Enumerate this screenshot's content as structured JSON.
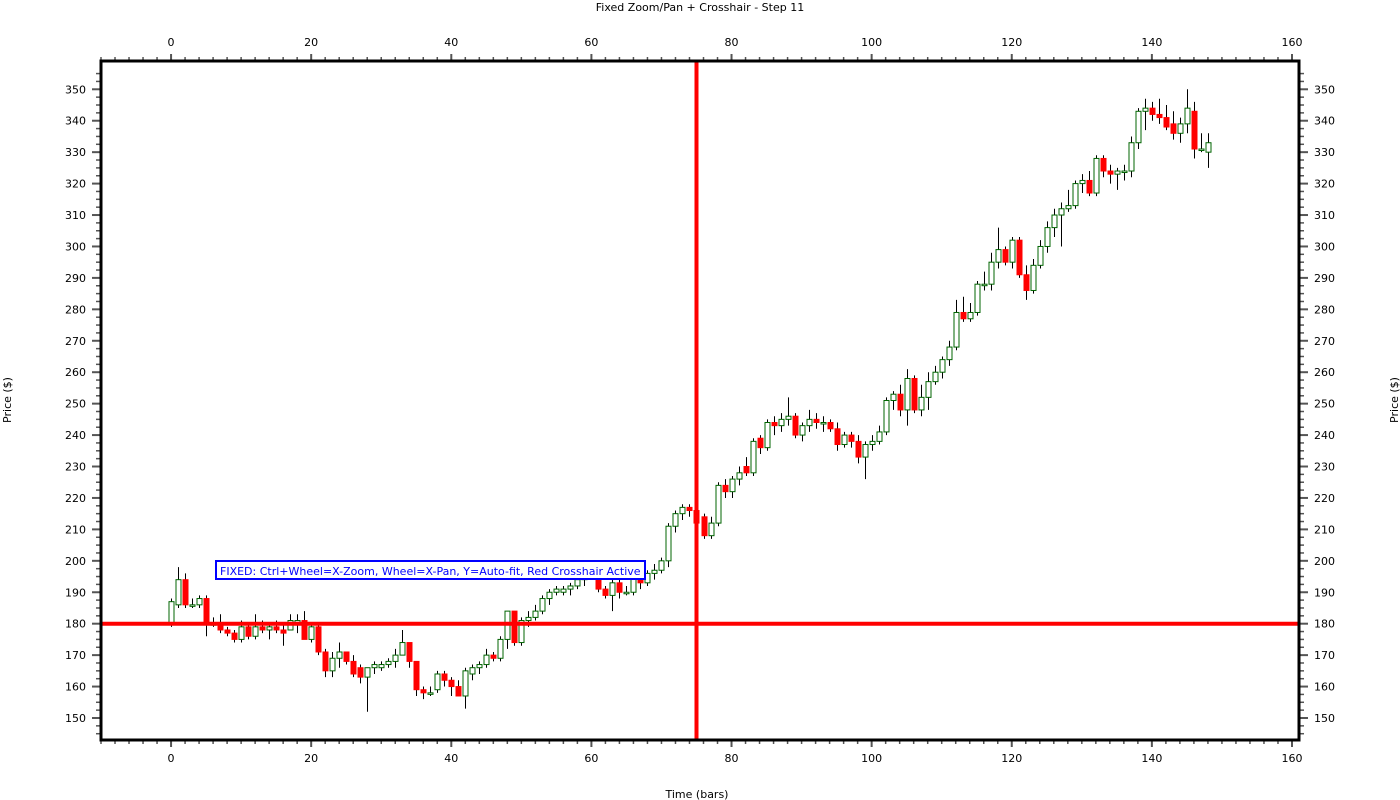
{
  "chart_data": {
    "type": "candlestick",
    "title": "Fixed Zoom/Pan + Crosshair - Step 11",
    "xlabel": "Time (bars)",
    "ylabel": "Price ($)",
    "xlim": [
      -10,
      161
    ],
    "ylim": [
      143,
      359
    ],
    "x_ticks": [
      0,
      20,
      40,
      60,
      80,
      100,
      120,
      140,
      160
    ],
    "y_ticks": [
      150,
      160,
      170,
      180,
      190,
      200,
      210,
      220,
      230,
      240,
      250,
      260,
      270,
      280,
      290,
      300,
      310,
      320,
      330,
      340,
      350
    ],
    "grid": false,
    "crosshair": {
      "x": 75,
      "y": 180,
      "color": "#ff0000"
    },
    "annotation": {
      "text": "FIXED: Ctrl+Wheel=X-Zoom, Wheel=X-Pan, Y=Auto-fit, Red Crosshair Active",
      "x": 5,
      "y": 197
    },
    "colors": {
      "up_body": "#ffffff",
      "up_border": "#006400",
      "down_body": "#ff0000",
      "wick": "#000000",
      "annotation": "#0000ff"
    },
    "candles": [
      {
        "x": 0,
        "o": 180,
        "h": 188,
        "l": 179,
        "c": 187
      },
      {
        "x": 1,
        "o": 186,
        "h": 198,
        "l": 185,
        "c": 194
      },
      {
        "x": 2,
        "o": 194,
        "h": 196,
        "l": 185,
        "c": 186
      },
      {
        "x": 3,
        "o": 186,
        "h": 188,
        "l": 185,
        "c": 186
      },
      {
        "x": 4,
        "o": 186,
        "h": 189,
        "l": 185,
        "c": 188
      },
      {
        "x": 5,
        "o": 188,
        "h": 189,
        "l": 176,
        "c": 180
      },
      {
        "x": 6,
        "o": 180,
        "h": 182,
        "l": 179,
        "c": 180
      },
      {
        "x": 7,
        "o": 180,
        "h": 183,
        "l": 177,
        "c": 178
      },
      {
        "x": 8,
        "o": 178,
        "h": 179,
        "l": 176,
        "c": 177
      },
      {
        "x": 9,
        "o": 177,
        "h": 178,
        "l": 174,
        "c": 175
      },
      {
        "x": 10,
        "o": 175,
        "h": 181,
        "l": 174,
        "c": 179
      },
      {
        "x": 11,
        "o": 179,
        "h": 180,
        "l": 175,
        "c": 176
      },
      {
        "x": 12,
        "o": 176,
        "h": 183,
        "l": 175,
        "c": 179
      },
      {
        "x": 13,
        "o": 179,
        "h": 181,
        "l": 177,
        "c": 178
      },
      {
        "x": 14,
        "o": 178,
        "h": 180,
        "l": 175,
        "c": 179
      },
      {
        "x": 15,
        "o": 179,
        "h": 181,
        "l": 177,
        "c": 178
      },
      {
        "x": 16,
        "o": 178,
        "h": 180,
        "l": 173,
        "c": 177
      },
      {
        "x": 17,
        "o": 178,
        "h": 183,
        "l": 178,
        "c": 181
      },
      {
        "x": 18,
        "o": 180,
        "h": 183,
        "l": 177,
        "c": 181
      },
      {
        "x": 19,
        "o": 181,
        "h": 184,
        "l": 176,
        "c": 175
      },
      {
        "x": 20,
        "o": 175,
        "h": 180,
        "l": 174,
        "c": 179
      },
      {
        "x": 21,
        "o": 179,
        "h": 180,
        "l": 170,
        "c": 171
      },
      {
        "x": 22,
        "o": 171,
        "h": 172,
        "l": 163,
        "c": 165
      },
      {
        "x": 23,
        "o": 165,
        "h": 171,
        "l": 163,
        "c": 169
      },
      {
        "x": 24,
        "o": 169,
        "h": 174,
        "l": 166,
        "c": 171
      },
      {
        "x": 25,
        "o": 171,
        "h": 171,
        "l": 167,
        "c": 168
      },
      {
        "x": 26,
        "o": 168,
        "h": 170,
        "l": 163,
        "c": 164
      },
      {
        "x": 27,
        "o": 166,
        "h": 167,
        "l": 161,
        "c": 163
      },
      {
        "x": 28,
        "o": 163,
        "h": 166,
        "l": 152,
        "c": 166
      },
      {
        "x": 29,
        "o": 166,
        "h": 168,
        "l": 164,
        "c": 167
      },
      {
        "x": 30,
        "o": 166,
        "h": 168,
        "l": 165,
        "c": 167
      },
      {
        "x": 31,
        "o": 167,
        "h": 169,
        "l": 166,
        "c": 168
      },
      {
        "x": 32,
        "o": 168,
        "h": 172,
        "l": 166,
        "c": 170
      },
      {
        "x": 33,
        "o": 170,
        "h": 178,
        "l": 170,
        "c": 174
      },
      {
        "x": 34,
        "o": 174,
        "h": 174,
        "l": 166,
        "c": 168
      },
      {
        "x": 35,
        "o": 168,
        "h": 168,
        "l": 157,
        "c": 159
      },
      {
        "x": 36,
        "o": 159,
        "h": 160,
        "l": 156,
        "c": 158
      },
      {
        "x": 37,
        "o": 158,
        "h": 160,
        "l": 157,
        "c": 158
      },
      {
        "x": 38,
        "o": 159,
        "h": 165,
        "l": 158,
        "c": 164
      },
      {
        "x": 39,
        "o": 164,
        "h": 165,
        "l": 160,
        "c": 162
      },
      {
        "x": 40,
        "o": 162,
        "h": 163,
        "l": 157,
        "c": 160
      },
      {
        "x": 41,
        "o": 160,
        "h": 162,
        "l": 157,
        "c": 157
      },
      {
        "x": 42,
        "o": 157,
        "h": 166,
        "l": 153,
        "c": 165
      },
      {
        "x": 43,
        "o": 164,
        "h": 167,
        "l": 162,
        "c": 166
      },
      {
        "x": 44,
        "o": 166,
        "h": 168,
        "l": 164,
        "c": 167
      },
      {
        "x": 45,
        "o": 167,
        "h": 172,
        "l": 166,
        "c": 170
      },
      {
        "x": 46,
        "o": 170,
        "h": 171,
        "l": 168,
        "c": 169
      },
      {
        "x": 47,
        "o": 169,
        "h": 176,
        "l": 168,
        "c": 175
      },
      {
        "x": 48,
        "o": 175,
        "h": 184,
        "l": 172,
        "c": 184
      },
      {
        "x": 49,
        "o": 184,
        "h": 184,
        "l": 173,
        "c": 174
      },
      {
        "x": 50,
        "o": 174,
        "h": 182,
        "l": 173,
        "c": 181
      },
      {
        "x": 51,
        "o": 181,
        "h": 184,
        "l": 179,
        "c": 182
      },
      {
        "x": 52,
        "o": 182,
        "h": 186,
        "l": 181,
        "c": 184
      },
      {
        "x": 53,
        "o": 184,
        "h": 189,
        "l": 183,
        "c": 188
      },
      {
        "x": 54,
        "o": 188,
        "h": 191,
        "l": 186,
        "c": 190
      },
      {
        "x": 55,
        "o": 190,
        "h": 192,
        "l": 189,
        "c": 191
      },
      {
        "x": 56,
        "o": 190,
        "h": 192,
        "l": 189,
        "c": 191
      },
      {
        "x": 57,
        "o": 191,
        "h": 193,
        "l": 189,
        "c": 192
      },
      {
        "x": 58,
        "o": 192,
        "h": 196,
        "l": 191,
        "c": 194
      },
      {
        "x": 59,
        "o": 194,
        "h": 197,
        "l": 192,
        "c": 196
      },
      {
        "x": 60,
        "o": 196,
        "h": 198,
        "l": 194,
        "c": 197
      },
      {
        "x": 61,
        "o": 197,
        "h": 197,
        "l": 190,
        "c": 191
      },
      {
        "x": 62,
        "o": 191,
        "h": 192,
        "l": 188,
        "c": 189
      },
      {
        "x": 63,
        "o": 189,
        "h": 195,
        "l": 184,
        "c": 193
      },
      {
        "x": 64,
        "o": 193,
        "h": 194,
        "l": 188,
        "c": 190
      },
      {
        "x": 65,
        "o": 190,
        "h": 192,
        "l": 189,
        "c": 190
      },
      {
        "x": 66,
        "o": 190,
        "h": 197,
        "l": 189,
        "c": 196
      },
      {
        "x": 67,
        "o": 196,
        "h": 197,
        "l": 191,
        "c": 193
      },
      {
        "x": 68,
        "o": 193,
        "h": 197,
        "l": 192,
        "c": 196
      },
      {
        "x": 69,
        "o": 196,
        "h": 199,
        "l": 194,
        "c": 197
      },
      {
        "x": 70,
        "o": 197,
        "h": 201,
        "l": 196,
        "c": 200
      },
      {
        "x": 71,
        "o": 200,
        "h": 212,
        "l": 198,
        "c": 211
      },
      {
        "x": 72,
        "o": 211,
        "h": 216,
        "l": 209,
        "c": 215
      },
      {
        "x": 73,
        "o": 215,
        "h": 218,
        "l": 213,
        "c": 217
      },
      {
        "x": 74,
        "o": 217,
        "h": 218,
        "l": 214,
        "c": 216
      },
      {
        "x": 75,
        "o": 216,
        "h": 217,
        "l": 208,
        "c": 212
      },
      {
        "x": 76,
        "o": 214,
        "h": 215,
        "l": 207,
        "c": 208
      },
      {
        "x": 77,
        "o": 208,
        "h": 214,
        "l": 207,
        "c": 212
      },
      {
        "x": 78,
        "o": 212,
        "h": 225,
        "l": 211,
        "c": 224
      },
      {
        "x": 79,
        "o": 224,
        "h": 226,
        "l": 220,
        "c": 222
      },
      {
        "x": 80,
        "o": 222,
        "h": 227,
        "l": 220,
        "c": 226
      },
      {
        "x": 81,
        "o": 226,
        "h": 230,
        "l": 224,
        "c": 228
      },
      {
        "x": 82,
        "o": 230,
        "h": 233,
        "l": 227,
        "c": 228
      },
      {
        "x": 83,
        "o": 228,
        "h": 239,
        "l": 227,
        "c": 238
      },
      {
        "x": 84,
        "o": 239,
        "h": 240,
        "l": 234,
        "c": 236
      },
      {
        "x": 85,
        "o": 236,
        "h": 245,
        "l": 235,
        "c": 244
      },
      {
        "x": 86,
        "o": 244,
        "h": 246,
        "l": 240,
        "c": 243
      },
      {
        "x": 87,
        "o": 243,
        "h": 247,
        "l": 241,
        "c": 245
      },
      {
        "x": 88,
        "o": 245,
        "h": 252,
        "l": 243,
        "c": 246
      },
      {
        "x": 89,
        "o": 246,
        "h": 247,
        "l": 239,
        "c": 240
      },
      {
        "x": 90,
        "o": 240,
        "h": 244,
        "l": 238,
        "c": 243
      },
      {
        "x": 91,
        "o": 243,
        "h": 248,
        "l": 241,
        "c": 245
      },
      {
        "x": 92,
        "o": 245,
        "h": 247,
        "l": 242,
        "c": 244
      },
      {
        "x": 93,
        "o": 244,
        "h": 246,
        "l": 241,
        "c": 244
      },
      {
        "x": 94,
        "o": 244,
        "h": 245,
        "l": 241,
        "c": 242
      },
      {
        "x": 95,
        "o": 242,
        "h": 244,
        "l": 235,
        "c": 237
      },
      {
        "x": 96,
        "o": 237,
        "h": 241,
        "l": 236,
        "c": 240
      },
      {
        "x": 97,
        "o": 240,
        "h": 241,
        "l": 236,
        "c": 238
      },
      {
        "x": 98,
        "o": 238,
        "h": 240,
        "l": 231,
        "c": 233
      },
      {
        "x": 99,
        "o": 233,
        "h": 238,
        "l": 226,
        "c": 237
      },
      {
        "x": 100,
        "o": 237,
        "h": 240,
        "l": 235,
        "c": 238
      },
      {
        "x": 101,
        "o": 238,
        "h": 243,
        "l": 237,
        "c": 241
      },
      {
        "x": 102,
        "o": 241,
        "h": 252,
        "l": 240,
        "c": 251
      },
      {
        "x": 103,
        "o": 251,
        "h": 254,
        "l": 248,
        "c": 253
      },
      {
        "x": 104,
        "o": 253,
        "h": 256,
        "l": 246,
        "c": 248
      },
      {
        "x": 105,
        "o": 248,
        "h": 261,
        "l": 243,
        "c": 258
      },
      {
        "x": 106,
        "o": 258,
        "h": 259,
        "l": 247,
        "c": 248
      },
      {
        "x": 107,
        "o": 248,
        "h": 256,
        "l": 246,
        "c": 252
      },
      {
        "x": 108,
        "o": 252,
        "h": 260,
        "l": 248,
        "c": 257
      },
      {
        "x": 109,
        "o": 257,
        "h": 262,
        "l": 256,
        "c": 260
      },
      {
        "x": 110,
        "o": 260,
        "h": 265,
        "l": 258,
        "c": 264
      },
      {
        "x": 111,
        "o": 264,
        "h": 270,
        "l": 262,
        "c": 268
      },
      {
        "x": 112,
        "o": 268,
        "h": 283,
        "l": 267,
        "c": 279
      },
      {
        "x": 113,
        "o": 279,
        "h": 284,
        "l": 276,
        "c": 277
      },
      {
        "x": 114,
        "o": 277,
        "h": 282,
        "l": 276,
        "c": 279
      },
      {
        "x": 115,
        "o": 279,
        "h": 289,
        "l": 278,
        "c": 288
      },
      {
        "x": 116,
        "o": 288,
        "h": 292,
        "l": 286,
        "c": 288
      },
      {
        "x": 117,
        "o": 288,
        "h": 298,
        "l": 286,
        "c": 295
      },
      {
        "x": 118,
        "o": 295,
        "h": 306,
        "l": 293,
        "c": 299
      },
      {
        "x": 119,
        "o": 299,
        "h": 300,
        "l": 294,
        "c": 295
      },
      {
        "x": 120,
        "o": 295,
        "h": 303,
        "l": 293,
        "c": 302
      },
      {
        "x": 121,
        "o": 302,
        "h": 303,
        "l": 290,
        "c": 291
      },
      {
        "x": 122,
        "o": 291,
        "h": 294,
        "l": 283,
        "c": 286
      },
      {
        "x": 123,
        "o": 286,
        "h": 296,
        "l": 285,
        "c": 294
      },
      {
        "x": 124,
        "o": 294,
        "h": 302,
        "l": 293,
        "c": 300
      },
      {
        "x": 125,
        "o": 300,
        "h": 308,
        "l": 298,
        "c": 306
      },
      {
        "x": 126,
        "o": 306,
        "h": 312,
        "l": 303,
        "c": 310
      },
      {
        "x": 127,
        "o": 310,
        "h": 314,
        "l": 300,
        "c": 312
      },
      {
        "x": 128,
        "o": 312,
        "h": 318,
        "l": 311,
        "c": 313
      },
      {
        "x": 129,
        "o": 313,
        "h": 321,
        "l": 312,
        "c": 320
      },
      {
        "x": 130,
        "o": 320,
        "h": 323,
        "l": 317,
        "c": 321
      },
      {
        "x": 131,
        "o": 321,
        "h": 324,
        "l": 316,
        "c": 317
      },
      {
        "x": 132,
        "o": 317,
        "h": 329,
        "l": 316,
        "c": 328
      },
      {
        "x": 133,
        "o": 328,
        "h": 329,
        "l": 322,
        "c": 324
      },
      {
        "x": 134,
        "o": 324,
        "h": 326,
        "l": 320,
        "c": 323
      },
      {
        "x": 135,
        "o": 323,
        "h": 325,
        "l": 318,
        "c": 324
      },
      {
        "x": 136,
        "o": 324,
        "h": 326,
        "l": 321,
        "c": 324
      },
      {
        "x": 137,
        "o": 324,
        "h": 335,
        "l": 322,
        "c": 333
      },
      {
        "x": 138,
        "o": 333,
        "h": 344,
        "l": 331,
        "c": 343
      },
      {
        "x": 139,
        "o": 343,
        "h": 347,
        "l": 337,
        "c": 344
      },
      {
        "x": 140,
        "o": 344,
        "h": 346,
        "l": 340,
        "c": 342
      },
      {
        "x": 141,
        "o": 342,
        "h": 347,
        "l": 339,
        "c": 341
      },
      {
        "x": 142,
        "o": 341,
        "h": 345,
        "l": 337,
        "c": 338
      },
      {
        "x": 143,
        "o": 339,
        "h": 343,
        "l": 334,
        "c": 336
      },
      {
        "x": 144,
        "o": 336,
        "h": 341,
        "l": 333,
        "c": 339
      },
      {
        "x": 145,
        "o": 339,
        "h": 350,
        "l": 336,
        "c": 344
      },
      {
        "x": 146,
        "o": 343,
        "h": 346,
        "l": 328,
        "c": 331
      },
      {
        "x": 147,
        "o": 331,
        "h": 336,
        "l": 330,
        "c": 331
      },
      {
        "x": 148,
        "o": 330,
        "h": 336,
        "l": 325,
        "c": 333
      }
    ]
  }
}
